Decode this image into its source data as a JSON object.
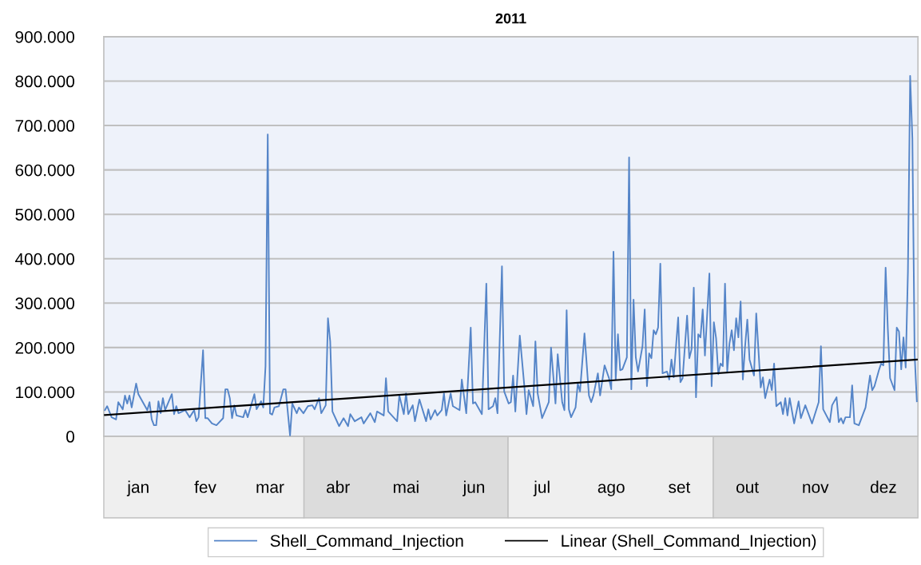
{
  "chart_data": {
    "type": "line",
    "title": "2011",
    "xlim": [
      "2010-12-31T12:00",
      "2011-12-31T12:00"
    ],
    "ylim": [
      0,
      900000
    ],
    "yticks": [
      {
        "value": 0,
        "label": "0"
      },
      {
        "value": 100000,
        "label": "100.000"
      },
      {
        "value": 200000,
        "label": "200.000"
      },
      {
        "value": 300000,
        "label": "300.000"
      },
      {
        "value": 400000,
        "label": "400.000"
      },
      {
        "value": 500000,
        "label": "500.000"
      },
      {
        "value": 600000,
        "label": "600.000"
      },
      {
        "value": 700000,
        "label": "700.000"
      },
      {
        "value": 800000,
        "label": "800.000"
      },
      {
        "value": 900000,
        "label": "900.000"
      }
    ],
    "xticks": [
      {
        "value": "2011-01-16",
        "label": "jan"
      },
      {
        "value": "2011-02-15",
        "label": "fev"
      },
      {
        "value": "2011-03-16",
        "label": "mar"
      },
      {
        "value": "2011-04-15T12:00",
        "label": "abr"
      },
      {
        "value": "2011-05-16",
        "label": "mai"
      },
      {
        "value": "2011-06-15T12:00",
        "label": "jun"
      },
      {
        "value": "2011-07-16",
        "label": "jul"
      },
      {
        "value": "2011-08-16",
        "label": "ago"
      },
      {
        "value": "2011-09-15T12:00",
        "label": "set"
      },
      {
        "value": "2011-10-16",
        "label": "out"
      },
      {
        "value": "2011-11-15T12:00",
        "label": "nov"
      },
      {
        "value": "2011-12-16",
        "label": "dez"
      }
    ],
    "grid": "y",
    "legend": "bottom",
    "marker": "none",
    "line_style": "solid",
    "series": [
      {
        "name": "Shell_Command_Injection",
        "color": "#5585c8",
        "x": [
          "2011-01-01",
          "2011-01-02",
          "2011-01-04",
          "2011-01-06",
          "2011-01-07",
          "2011-01-09",
          "2011-01-10",
          "2011-01-11",
          "2011-01-12",
          "2011-01-13",
          "2011-01-15",
          "2011-01-16",
          "2011-01-18",
          "2011-01-20",
          "2011-01-21",
          "2011-01-22",
          "2011-01-23",
          "2011-01-24",
          "2011-01-25",
          "2011-01-26",
          "2011-01-27",
          "2011-01-28",
          "2011-01-31",
          "2011-02-01",
          "2011-02-02",
          "2011-02-03",
          "2011-02-06",
          "2011-02-08",
          "2011-02-10",
          "2011-02-11",
          "2011-02-12",
          "2011-02-14",
          "2011-02-15",
          "2011-02-16",
          "2011-02-18",
          "2011-02-20",
          "2011-02-23",
          "2011-02-24",
          "2011-02-25",
          "2011-02-26",
          "2011-02-27",
          "2011-02-28",
          "2011-03-01",
          "2011-03-04",
          "2011-03-05",
          "2011-03-06",
          "2011-03-09",
          "2011-03-10",
          "2011-03-12",
          "2011-03-13",
          "2011-03-14",
          "2011-03-15",
          "2011-03-16",
          "2011-03-17",
          "2011-03-18",
          "2011-03-20",
          "2011-03-22",
          "2011-03-23",
          "2011-03-25",
          "2011-03-26",
          "2011-03-28",
          "2011-03-29",
          "2011-03-31",
          "2011-04-02",
          "2011-04-04",
          "2011-04-05",
          "2011-04-07",
          "2011-04-08",
          "2011-04-10",
          "2011-04-11",
          "2011-04-12",
          "2011-04-13",
          "2011-04-16",
          "2011-04-18",
          "2011-04-20",
          "2011-04-21",
          "2011-04-23",
          "2011-04-26",
          "2011-04-27",
          "2011-04-30",
          "2011-05-02",
          "2011-05-03",
          "2011-05-06",
          "2011-05-07",
          "2011-05-08",
          "2011-05-12",
          "2011-05-13",
          "2011-05-15",
          "2011-05-16",
          "2011-05-17",
          "2011-05-19",
          "2011-05-20",
          "2011-05-22",
          "2011-05-25",
          "2011-05-26",
          "2011-05-27",
          "2011-05-29",
          "2011-05-30",
          "2011-06-01",
          "2011-06-02",
          "2011-06-03",
          "2011-06-05",
          "2011-06-06",
          "2011-06-09",
          "2011-06-10",
          "2011-06-12",
          "2011-06-14",
          "2011-06-15",
          "2011-06-16",
          "2011-06-18",
          "2011-06-19",
          "2011-06-21",
          "2011-06-22",
          "2011-06-24",
          "2011-06-25",
          "2011-06-26",
          "2011-06-28",
          "2011-06-29",
          "2011-07-01",
          "2011-07-02",
          "2011-07-03",
          "2011-07-04",
          "2011-07-06",
          "2011-07-08",
          "2011-07-09",
          "2011-07-10",
          "2011-07-12",
          "2011-07-13",
          "2011-07-14",
          "2011-07-16",
          "2011-07-19",
          "2011-07-20",
          "2011-07-22",
          "2011-07-23",
          "2011-07-25",
          "2011-07-26",
          "2011-07-27",
          "2011-07-28",
          "2011-07-29",
          "2011-07-31",
          "2011-08-01",
          "2011-08-02",
          "2011-08-04",
          "2011-08-06",
          "2011-08-07",
          "2011-08-08",
          "2011-08-10",
          "2011-08-11",
          "2011-08-13",
          "2011-08-15",
          "2011-08-16",
          "2011-08-17",
          "2011-08-18",
          "2011-08-19",
          "2011-08-20",
          "2011-08-21",
          "2011-08-23",
          "2011-08-24",
          "2011-08-25",
          "2011-08-26",
          "2011-08-27",
          "2011-08-28",
          "2011-08-30",
          "2011-08-31",
          "2011-09-01",
          "2011-09-02",
          "2011-09-03",
          "2011-09-04",
          "2011-09-05",
          "2011-09-06",
          "2011-09-07",
          "2011-09-08",
          "2011-09-10",
          "2011-09-11",
          "2011-09-12",
          "2011-09-13",
          "2011-09-15",
          "2011-09-16",
          "2011-09-17",
          "2011-09-19",
          "2011-09-20",
          "2011-09-21",
          "2011-09-22",
          "2011-09-23",
          "2011-09-24",
          "2011-09-25",
          "2011-09-26",
          "2011-09-27",
          "2011-09-29",
          "2011-09-30",
          "2011-10-01",
          "2011-10-02",
          "2011-10-03",
          "2011-10-04",
          "2011-10-05",
          "2011-10-06",
          "2011-10-07",
          "2011-10-08",
          "2011-10-09",
          "2011-10-10",
          "2011-10-11",
          "2011-10-12",
          "2011-10-13",
          "2011-10-14",
          "2011-10-15",
          "2011-10-16",
          "2011-10-17",
          "2011-10-19",
          "2011-10-20",
          "2011-10-22",
          "2011-10-23",
          "2011-10-24",
          "2011-10-26",
          "2011-10-27",
          "2011-10-28",
          "2011-10-29",
          "2011-10-31",
          "2011-11-01",
          "2011-11-02",
          "2011-11-03",
          "2011-11-04",
          "2011-11-06",
          "2011-11-08",
          "2011-11-09",
          "2011-11-11",
          "2011-11-14",
          "2011-11-17",
          "2011-11-18",
          "2011-11-19",
          "2011-11-22",
          "2011-11-23",
          "2011-11-25",
          "2011-11-26",
          "2011-11-27",
          "2011-11-28",
          "2011-11-29",
          "2011-12-01",
          "2011-12-02",
          "2011-12-03",
          "2011-12-05",
          "2011-12-08",
          "2011-12-10",
          "2011-12-11",
          "2011-12-12",
          "2011-12-14",
          "2011-12-15",
          "2011-12-16",
          "2011-12-17",
          "2011-12-18",
          "2011-12-19",
          "2011-12-21",
          "2011-12-22",
          "2011-12-23",
          "2011-12-24",
          "2011-12-25",
          "2011-12-26",
          "2011-12-27",
          "2011-12-28",
          "2011-12-29",
          "2011-12-30",
          "2011-12-31"
        ],
        "values": [
          59000,
          68000,
          43000,
          38000,
          77000,
          61000,
          92000,
          74000,
          92000,
          65000,
          119000,
          95000,
          77000,
          59000,
          77000,
          38000,
          25000,
          25000,
          79000,
          52000,
          86000,
          59000,
          95000,
          50000,
          68000,
          52000,
          59000,
          43000,
          59000,
          34000,
          43000,
          194000,
          41000,
          41000,
          29000,
          25000,
          41000,
          106000,
          106000,
          86000,
          41000,
          70000,
          47000,
          43000,
          59000,
          43000,
          95000,
          61000,
          79000,
          65000,
          158000,
          680000,
          52000,
          49000,
          65000,
          68000,
          106000,
          106000,
          2000,
          74000,
          52000,
          65000,
          52000,
          68000,
          70000,
          61000,
          86000,
          52000,
          70000,
          266000,
          214000,
          56000,
          23000,
          41000,
          23000,
          50000,
          34000,
          43000,
          29000,
          52000,
          32000,
          56000,
          47000,
          131000,
          56000,
          34000,
          92000,
          50000,
          97000,
          50000,
          70000,
          34000,
          83000,
          34000,
          61000,
          38000,
          59000,
          47000,
          59000,
          97000,
          47000,
          97000,
          68000,
          59000,
          128000,
          52000,
          245000,
          74000,
          77000,
          59000,
          50000,
          344000,
          61000,
          68000,
          86000,
          52000,
          383000,
          101000,
          74000,
          77000,
          137000,
          56000,
          227000,
          115000,
          50000,
          104000,
          68000,
          214000,
          97000,
          41000,
          77000,
          200000,
          74000,
          185000,
          77000,
          59000,
          284000,
          61000,
          43000,
          65000,
          119000,
          101000,
          232000,
          92000,
          77000,
          92000,
          142000,
          92000,
          160000,
          131000,
          106000,
          416000,
          128000,
          230000,
          149000,
          151000,
          178000,
          628000,
          106000,
          308000,
          178000,
          146000,
          203000,
          286000,
          113000,
          187000,
          176000,
          239000,
          230000,
          245000,
          389000,
          142000,
          146000,
          128000,
          173000,
          133000,
          268000,
          122000,
          131000,
          272000,
          176000,
          196000,
          335000,
          88000,
          230000,
          223000,
          286000,
          182000,
          367000,
          113000,
          257000,
          221000,
          140000,
          164000,
          158000,
          344000,
          146000,
          209000,
          239000,
          194000,
          266000,
          223000,
          304000,
          128000,
          203000,
          263000,
          173000,
          137000,
          277000,
          110000,
          133000,
          86000,
          128000,
          104000,
          164000,
          68000,
          77000,
          50000,
          86000,
          47000,
          86000,
          29000,
          79000,
          41000,
          70000,
          29000,
          77000,
          203000,
          61000,
          32000,
          70000,
          88000,
          32000,
          41000,
          29000,
          43000,
          43000,
          115000,
          29000,
          25000,
          65000,
          137000,
          104000,
          113000,
          149000,
          164000,
          160000,
          380000,
          241000,
          131000,
          104000,
          245000,
          236000,
          151000,
          223000,
          155000,
          371000,
          812000,
          671000,
          185000,
          79000
        ]
      },
      {
        "name": "Linear (Shell_Command_Injection)",
        "color": "#000000",
        "x": [
          "2011-01-01",
          "2011-12-31"
        ],
        "values": [
          48000,
          173000
        ]
      }
    ]
  }
}
